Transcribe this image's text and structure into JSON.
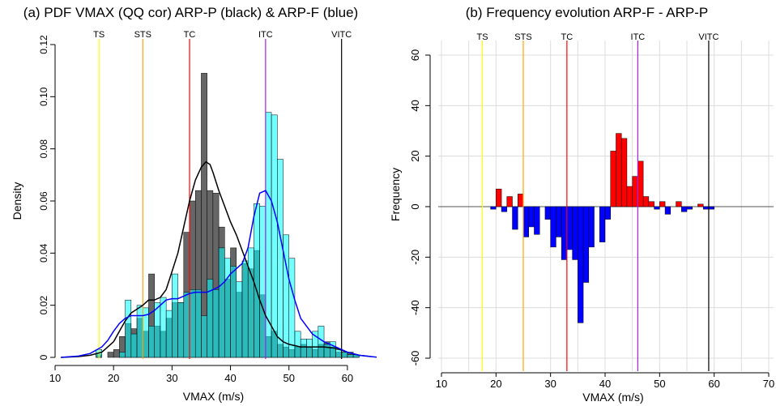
{
  "chart_data": [
    {
      "type": "bar",
      "title": "(a) PDF VMAX (QQ cor)  ARP-P (black) & ARP-F (blue)",
      "xlabel": "VMAX (m/s)",
      "ylabel": "Density",
      "xlim": [
        10,
        65
      ],
      "ylim": [
        0,
        0.12
      ],
      "xticks": [
        10,
        20,
        30,
        40,
        50,
        60
      ],
      "yticks": [
        0,
        0.02,
        0.04,
        0.06,
        0.08,
        0.1,
        0.12
      ],
      "ytick_labels": [
        "0",
        "0.02",
        "0.04",
        "0.06",
        "0.08",
        "0.10",
        "0.12"
      ],
      "grid": false,
      "bin_width": 1,
      "bin_starts": [
        17,
        18,
        19,
        20,
        21,
        22,
        23,
        24,
        25,
        26,
        27,
        28,
        29,
        30,
        31,
        32,
        33,
        34,
        35,
        36,
        37,
        38,
        39,
        40,
        41,
        42,
        43,
        44,
        45,
        46,
        47,
        48,
        49,
        50,
        51,
        52,
        53,
        54,
        55,
        56,
        57,
        58,
        59,
        60,
        61
      ],
      "series": [
        {
          "name": "ARP-P",
          "color": "#666666",
          "values": [
            0.001,
            0.0,
            0.002,
            0.003,
            0.008,
            0.013,
            0.011,
            0.015,
            0.01,
            0.032,
            0.012,
            0.01,
            0.015,
            0.021,
            0.021,
            0.048,
            0.06,
            0.064,
            0.109,
            0.064,
            0.063,
            0.05,
            0.03,
            0.042,
            0.025,
            0.036,
            0.034,
            0.041,
            0.024,
            0.008,
            0.01,
            0.005,
            0.004,
            0.003,
            0.004,
            0.005,
            0.004,
            0.003,
            0.005,
            0.006,
            0.004,
            0.002,
            0.002,
            0.002,
            0.001
          ]
        },
        {
          "name": "ARP-F",
          "color": "#00FFFF",
          "values": [
            0.003,
            0.0,
            0.0,
            0.0,
            0.002,
            0.022,
            0.009,
            0.02,
            0.019,
            0.012,
            0.021,
            0.023,
            0.018,
            0.032,
            0.021,
            0.025,
            0.026,
            0.026,
            0.016,
            0.03,
            0.026,
            0.042,
            0.038,
            0.035,
            0.029,
            0.037,
            0.042,
            0.059,
            0.058,
            0.094,
            0.093,
            0.076,
            0.047,
            0.038,
            0.01,
            0.007,
            0.007,
            0.01,
            0.012,
            0.005,
            0.006,
            0.003,
            0.002,
            0.001,
            0.001
          ]
        }
      ],
      "density_curves": [
        {
          "name": "ARP-P",
          "color": "#000000",
          "x": [
            11,
            14,
            16,
            18,
            20,
            21,
            22,
            23,
            24,
            25,
            26,
            27,
            28,
            29,
            30,
            31,
            32,
            33,
            34,
            35,
            35.8,
            36.5,
            37,
            38,
            39,
            40,
            41,
            42,
            43,
            44,
            45,
            46,
            47,
            48,
            49,
            50,
            52,
            54,
            56,
            58,
            60,
            62,
            64
          ],
          "y": [
            0.0,
            0.0003,
            0.0008,
            0.002,
            0.006,
            0.01,
            0.014,
            0.017,
            0.0185,
            0.02,
            0.022,
            0.022,
            0.023,
            0.026,
            0.033,
            0.04,
            0.05,
            0.06,
            0.068,
            0.073,
            0.075,
            0.074,
            0.071,
            0.064,
            0.058,
            0.052,
            0.047,
            0.041,
            0.035,
            0.029,
            0.022,
            0.016,
            0.012,
            0.008,
            0.006,
            0.005,
            0.004,
            0.004,
            0.004,
            0.0035,
            0.002,
            0.0008,
            0.0003
          ]
        },
        {
          "name": "ARP-F",
          "color": "#0000FF",
          "x": [
            11,
            14,
            16,
            18,
            19,
            20,
            21,
            22,
            23,
            24,
            25,
            26,
            27,
            28,
            29,
            30,
            31,
            32,
            33,
            34,
            35,
            36,
            37,
            38,
            39,
            40,
            41,
            42,
            43,
            44,
            45,
            46,
            47,
            48,
            49,
            50,
            51,
            52,
            54,
            56,
            58,
            60,
            62,
            65
          ],
          "y": [
            0.0,
            0.0005,
            0.0015,
            0.004,
            0.0065,
            0.01,
            0.013,
            0.015,
            0.016,
            0.016,
            0.016,
            0.0165,
            0.018,
            0.02,
            0.022,
            0.0225,
            0.0225,
            0.0235,
            0.0245,
            0.025,
            0.025,
            0.025,
            0.026,
            0.027,
            0.029,
            0.032,
            0.034,
            0.036,
            0.042,
            0.054,
            0.063,
            0.064,
            0.06,
            0.052,
            0.041,
            0.03,
            0.022,
            0.015,
            0.009,
            0.006,
            0.004,
            0.002,
            0.0008,
            0.0001
          ]
        }
      ],
      "vlines": [
        {
          "label": "TS",
          "x": 17.5,
          "color": "#FFFF00"
        },
        {
          "label": "STS",
          "x": 25,
          "color": "#FFA500"
        },
        {
          "label": "TC",
          "x": 33,
          "color": "#FF0000"
        },
        {
          "label": "ITC",
          "x": 46,
          "color": "#A020F0"
        },
        {
          "label": "VITC",
          "x": 59,
          "color": "#000000"
        }
      ]
    },
    {
      "type": "bar",
      "title": "(b) Frequency evolution ARP-F - ARP-P",
      "xlabel": "VMAX (m/s)",
      "ylabel": "Frequency",
      "xlim": [
        10,
        70
      ],
      "ylim": [
        -60,
        60
      ],
      "xticks": [
        10,
        20,
        30,
        40,
        50,
        60,
        70
      ],
      "yticks": [
        -60,
        -40,
        -20,
        0,
        20,
        40,
        60
      ],
      "grid": true,
      "bin_width": 1,
      "bin_starts": [
        19,
        20,
        21,
        22,
        23,
        24,
        25,
        26,
        27,
        28,
        29,
        30,
        31,
        32,
        33,
        34,
        35,
        36,
        37,
        38,
        39,
        40,
        41,
        42,
        43,
        44,
        45,
        46,
        47,
        48,
        49,
        50,
        51,
        52,
        53,
        54,
        55,
        56,
        57,
        58,
        59,
        60
      ],
      "values": [
        -1,
        7,
        -2,
        4,
        -9,
        5,
        -12,
        -8,
        -11,
        0,
        -5,
        -16,
        -12,
        -21,
        -17,
        -21,
        -46,
        -30,
        -16,
        0,
        -14,
        -5,
        22,
        29,
        27,
        8,
        12,
        18,
        4,
        2,
        -1,
        2,
        -3,
        0,
        2,
        -2,
        -1,
        0,
        1,
        -1,
        -1,
        0
      ],
      "positive_color": "#FF0000",
      "negative_color": "#0000FF",
      "vlines": [
        {
          "label": "TS",
          "x": 17.5,
          "color": "#FFFF00"
        },
        {
          "label": "STS",
          "x": 25,
          "color": "#FFA500"
        },
        {
          "label": "TC",
          "x": 33,
          "color": "#FF0000"
        },
        {
          "label": "ITC",
          "x": 46,
          "color": "#A020F0"
        },
        {
          "label": "VITC",
          "x": 59,
          "color": "#000000"
        }
      ]
    }
  ]
}
